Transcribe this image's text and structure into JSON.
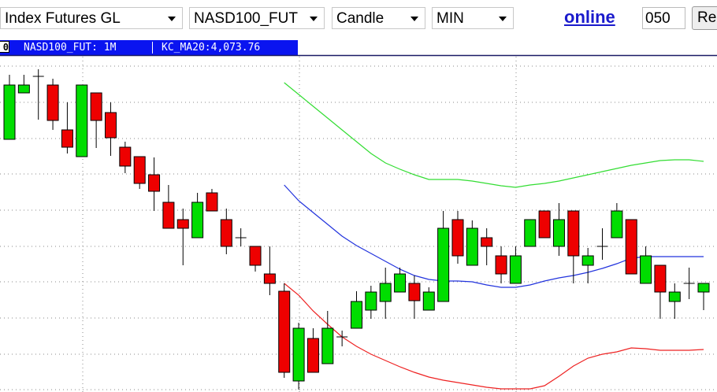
{
  "toolbar": {
    "selects": [
      "Index Futures GL",
      "NASD100_FUT",
      "Candle",
      "MIN"
    ],
    "link": "online",
    "input": "050",
    "button": "Re"
  },
  "infobar": {
    "box": "0",
    "symbol": "NASD100_FUT: 1M",
    "indicator": "KC_MA20:4,073.76"
  },
  "chart_data": {
    "type": "candlestick",
    "up_color": "#00dd00",
    "down_color": "#ee0000",
    "ylim": [
      0,
      428
    ],
    "open": [
      321,
      380,
      401,
      390,
      333,
      299,
      380,
      355,
      311,
      299,
      276,
      241,
      219,
      196,
      253,
      219,
      196,
      185,
      150,
      128,
      14,
      68,
      36,
      70,
      81,
      104,
      115,
      127,
      138,
      104,
      115,
      219,
      161,
      196,
      173,
      138,
      185,
      230,
      185,
      230,
      161,
      185,
      196,
      219,
      138,
      161,
      115,
      138,
      127
    ],
    "high": [
      403,
      403,
      410,
      398,
      368,
      390,
      380,
      368,
      318,
      299,
      298,
      263,
      233,
      253,
      258,
      233,
      208,
      185,
      185,
      138,
      88,
      81,
      103,
      78,
      128,
      135,
      158,
      158,
      148,
      133,
      230,
      230,
      218,
      208,
      185,
      185,
      219,
      230,
      240,
      230,
      183,
      208,
      240,
      219,
      185,
      161,
      138,
      158,
      138
    ],
    "low": [
      321,
      380,
      346,
      333,
      303,
      299,
      310,
      300,
      278,
      258,
      230,
      208,
      161,
      196,
      230,
      175,
      185,
      153,
      123,
      18,
      3,
      25,
      36,
      58,
      81,
      93,
      93,
      127,
      93,
      104,
      115,
      163,
      161,
      161,
      138,
      138,
      185,
      196,
      173,
      138,
      138,
      168,
      196,
      150,
      138,
      93,
      93,
      118,
      104
    ],
    "close": [
      390,
      390,
      401,
      345,
      311,
      390,
      345,
      323,
      287,
      265,
      255,
      208,
      208,
      241,
      230,
      185,
      196,
      161,
      138,
      25,
      81,
      25,
      81,
      70,
      115,
      127,
      138,
      150,
      116,
      127,
      208,
      173,
      208,
      185,
      150,
      173,
      219,
      196,
      219,
      173,
      173,
      185,
      230,
      150,
      173,
      127,
      127,
      138,
      138
    ],
    "lines": [
      {
        "color": "#33dd33",
        "values": [
          null,
          null,
          null,
          null,
          null,
          null,
          null,
          null,
          null,
          null,
          null,
          null,
          null,
          null,
          null,
          null,
          null,
          null,
          null,
          393,
          378,
          363,
          348,
          333,
          318,
          303,
          291,
          283,
          276,
          270,
          270,
          270,
          268,
          265,
          262,
          260,
          263,
          265,
          268,
          272,
          276,
          280,
          284,
          288,
          291,
          294,
          295,
          295,
          293
        ]
      },
      {
        "color": "#2233dd",
        "values": [
          null,
          null,
          null,
          null,
          null,
          null,
          null,
          null,
          null,
          null,
          null,
          null,
          null,
          null,
          null,
          null,
          null,
          null,
          null,
          263,
          243,
          228,
          213,
          198,
          186,
          176,
          166,
          156,
          148,
          143,
          141,
          141,
          140,
          136,
          133,
          133,
          136,
          141,
          145,
          148,
          152,
          157,
          163,
          170,
          172,
          172,
          172,
          172,
          172
        ]
      },
      {
        "color": "#ee2222",
        "values": [
          null,
          null,
          null,
          null,
          null,
          null,
          null,
          null,
          null,
          null,
          null,
          null,
          null,
          null,
          null,
          null,
          null,
          null,
          null,
          138,
          123,
          103,
          86,
          70,
          58,
          48,
          40,
          32,
          25,
          19,
          15,
          12,
          9,
          6,
          4,
          4,
          4,
          8,
          20,
          33,
          43,
          48,
          51,
          56,
          55,
          53,
          53,
          53,
          54
        ]
      }
    ]
  }
}
